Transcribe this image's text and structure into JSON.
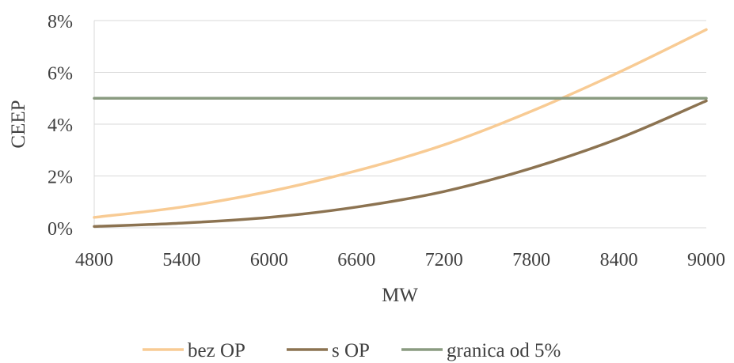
{
  "chart_data": {
    "type": "line",
    "xlabel": "MW",
    "ylabel": "CEEP",
    "xlim": [
      4800,
      9000
    ],
    "ylim": [
      0,
      8
    ],
    "x_ticks": [
      4800,
      5400,
      6000,
      6600,
      7200,
      7800,
      8400,
      9000
    ],
    "y_ticks": [
      0,
      2,
      4,
      6,
      8
    ],
    "y_tick_labels": [
      "0%",
      "2%",
      "4%",
      "6%",
      "8%"
    ],
    "grid": "horizontal",
    "legend_position": "bottom",
    "x": [
      4800,
      5400,
      6000,
      6600,
      7200,
      7800,
      8400,
      9000
    ],
    "series": [
      {
        "name": "bez OP",
        "color": "#f8cb94",
        "values": [
          0.4,
          0.8,
          1.4,
          2.2,
          3.2,
          4.5,
          6.0,
          7.65
        ]
      },
      {
        "name": "s OP",
        "color": "#8c7351",
        "values": [
          0.05,
          0.18,
          0.4,
          0.8,
          1.4,
          2.3,
          3.45,
          4.9
        ]
      },
      {
        "name": "granica od 5%",
        "color": "#8a9b80",
        "values": [
          5,
          5,
          5,
          5,
          5,
          5,
          5,
          5
        ]
      }
    ]
  }
}
